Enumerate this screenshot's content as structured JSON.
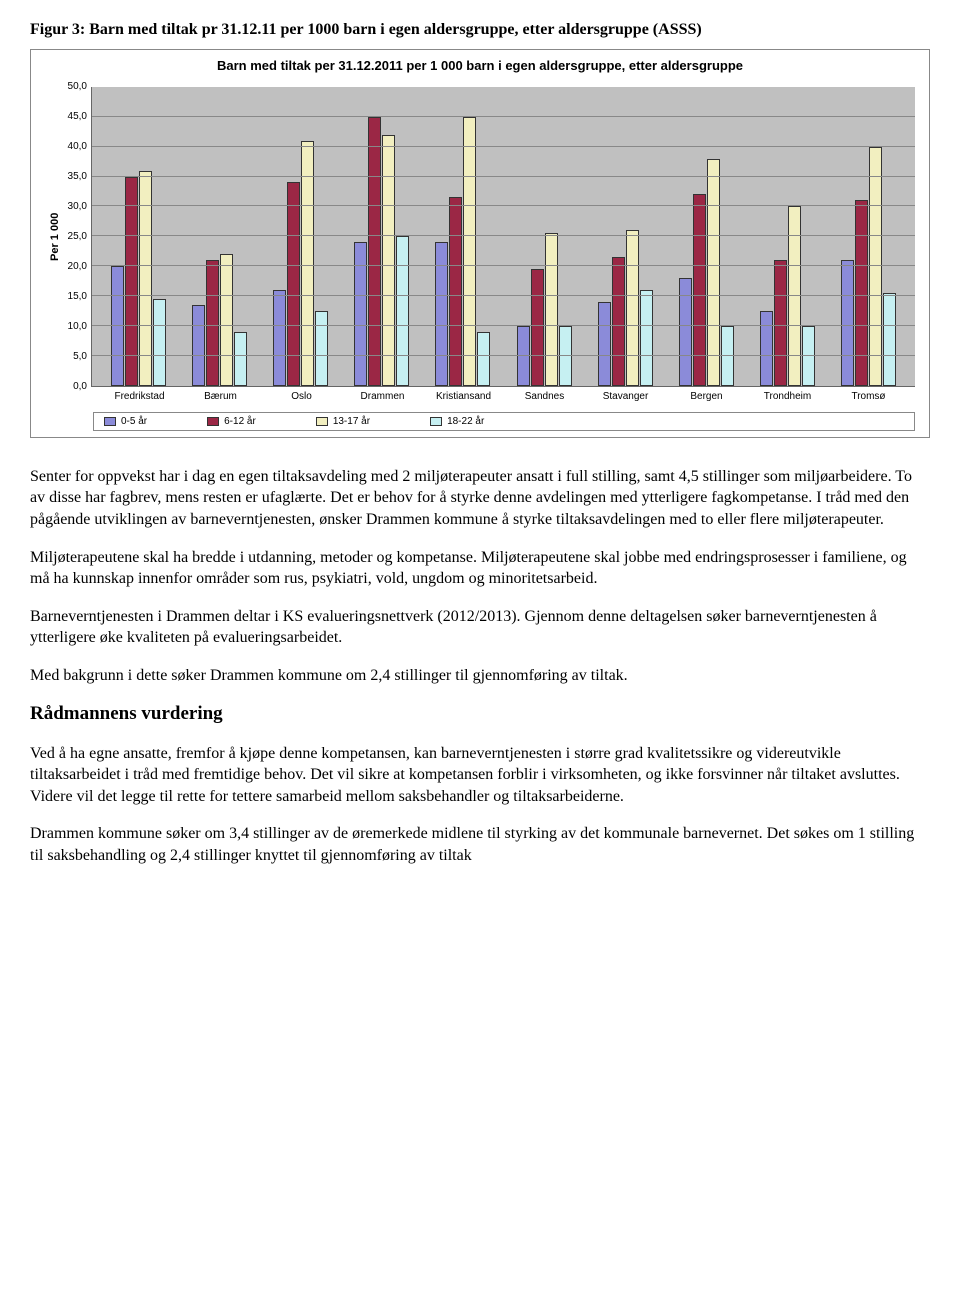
{
  "figure_caption": "Figur 3: Barn med tiltak pr 31.12.11 per 1000 barn i egen aldersgruppe, etter aldersgruppe (ASSS)",
  "chart": {
    "type": "bar",
    "title": "Barn med tiltak per 31.12.2011 per 1 000 barn i egen aldersgruppe, etter aldersgruppe",
    "y_axis_label": "Per 1 000",
    "ylim": [
      0,
      50
    ],
    "ytick_step": 5,
    "yticks": [
      "50,0",
      "45,0",
      "40,0",
      "35,0",
      "30,0",
      "25,0",
      "20,0",
      "15,0",
      "10,0",
      "5,0",
      "0,0"
    ],
    "plot_bg": "#c0c0c0",
    "grid_color": "#888888",
    "categories": [
      "Fredrikstad",
      "Bærum",
      "Oslo",
      "Drammen",
      "Kristiansand",
      "Sandnes",
      "Stavanger",
      "Bergen",
      "Trondheim",
      "Tromsø"
    ],
    "series": [
      {
        "name": "0-5 år",
        "color": "#8b8bd9",
        "values": [
          20.0,
          13.5,
          16.0,
          24.0,
          24.0,
          10.0,
          14.0,
          18.0,
          12.5,
          21.0
        ]
      },
      {
        "name": "6-12 år",
        "color": "#9b2745",
        "values": [
          35.0,
          21.0,
          34.0,
          45.0,
          31.5,
          19.5,
          21.5,
          32.0,
          21.0,
          31.0
        ]
      },
      {
        "name": "13-17 år",
        "color": "#f2efc0",
        "values": [
          36.0,
          22.0,
          41.0,
          42.0,
          45.0,
          25.5,
          26.0,
          38.0,
          30.0,
          40.0
        ]
      },
      {
        "name": "18-22 år",
        "color": "#c6f0f2",
        "values": [
          14.5,
          9.0,
          12.5,
          25.0,
          9.0,
          10.0,
          16.0,
          10.0,
          10.0,
          15.5
        ]
      }
    ],
    "bar_border": "#333333",
    "chart_border": "#888888",
    "title_fontsize": 13,
    "tick_fontsize": 10
  },
  "paragraphs": {
    "p1": "Senter for oppvekst har i dag en egen tiltaksavdeling med 2 miljøterapeuter ansatt i full stilling, samt 4,5 stillinger som miljøarbeidere. To av disse har fagbrev, mens resten er ufaglærte. Det er behov for å styrke denne avdelingen med ytterligere fagkompetanse. I tråd med den pågående utviklingen av barneverntjenesten, ønsker Drammen kommune å styrke tiltaksavdelingen med to eller flere miljøterapeuter.",
    "p2": "Miljøterapeutene skal ha bredde i utdanning, metoder og kompetanse. Miljøterapeutene skal jobbe med endringsprosesser i familiene, og må ha kunnskap innenfor områder som rus, psykiatri, vold, ungdom og minoritetsarbeid.",
    "p3": "Barneverntjenesten i Drammen deltar i KS evalueringsnettverk (2012/2013). Gjennom denne deltagelsen søker barneverntjenesten å ytterligere øke kvaliteten på evalueringsarbeidet.",
    "p4": "Med bakgrunn i dette søker Drammen kommune om 2,4 stillinger til gjennomføring av tiltak.",
    "heading": "Rådmannens vurdering",
    "p5": "Ved å ha egne ansatte, fremfor å kjøpe denne kompetansen, kan barneverntjenesten i større grad kvalitetssikre og videreutvikle tiltaksarbeidet i tråd med fremtidige behov. Det vil sikre at kompetansen forblir i virksomheten, og ikke forsvinner når tiltaket avsluttes. Videre vil det legge til rette for tettere samarbeid mellom saksbehandler og tiltaksarbeiderne.",
    "p6": "Drammen kommune søker om 3,4  stillinger av de øremerkede midlene til styrking av det kommunale barnevernet. Det søkes om 1 stilling til saksbehandling og 2,4 stillinger knyttet til gjennomføring av tiltak"
  }
}
